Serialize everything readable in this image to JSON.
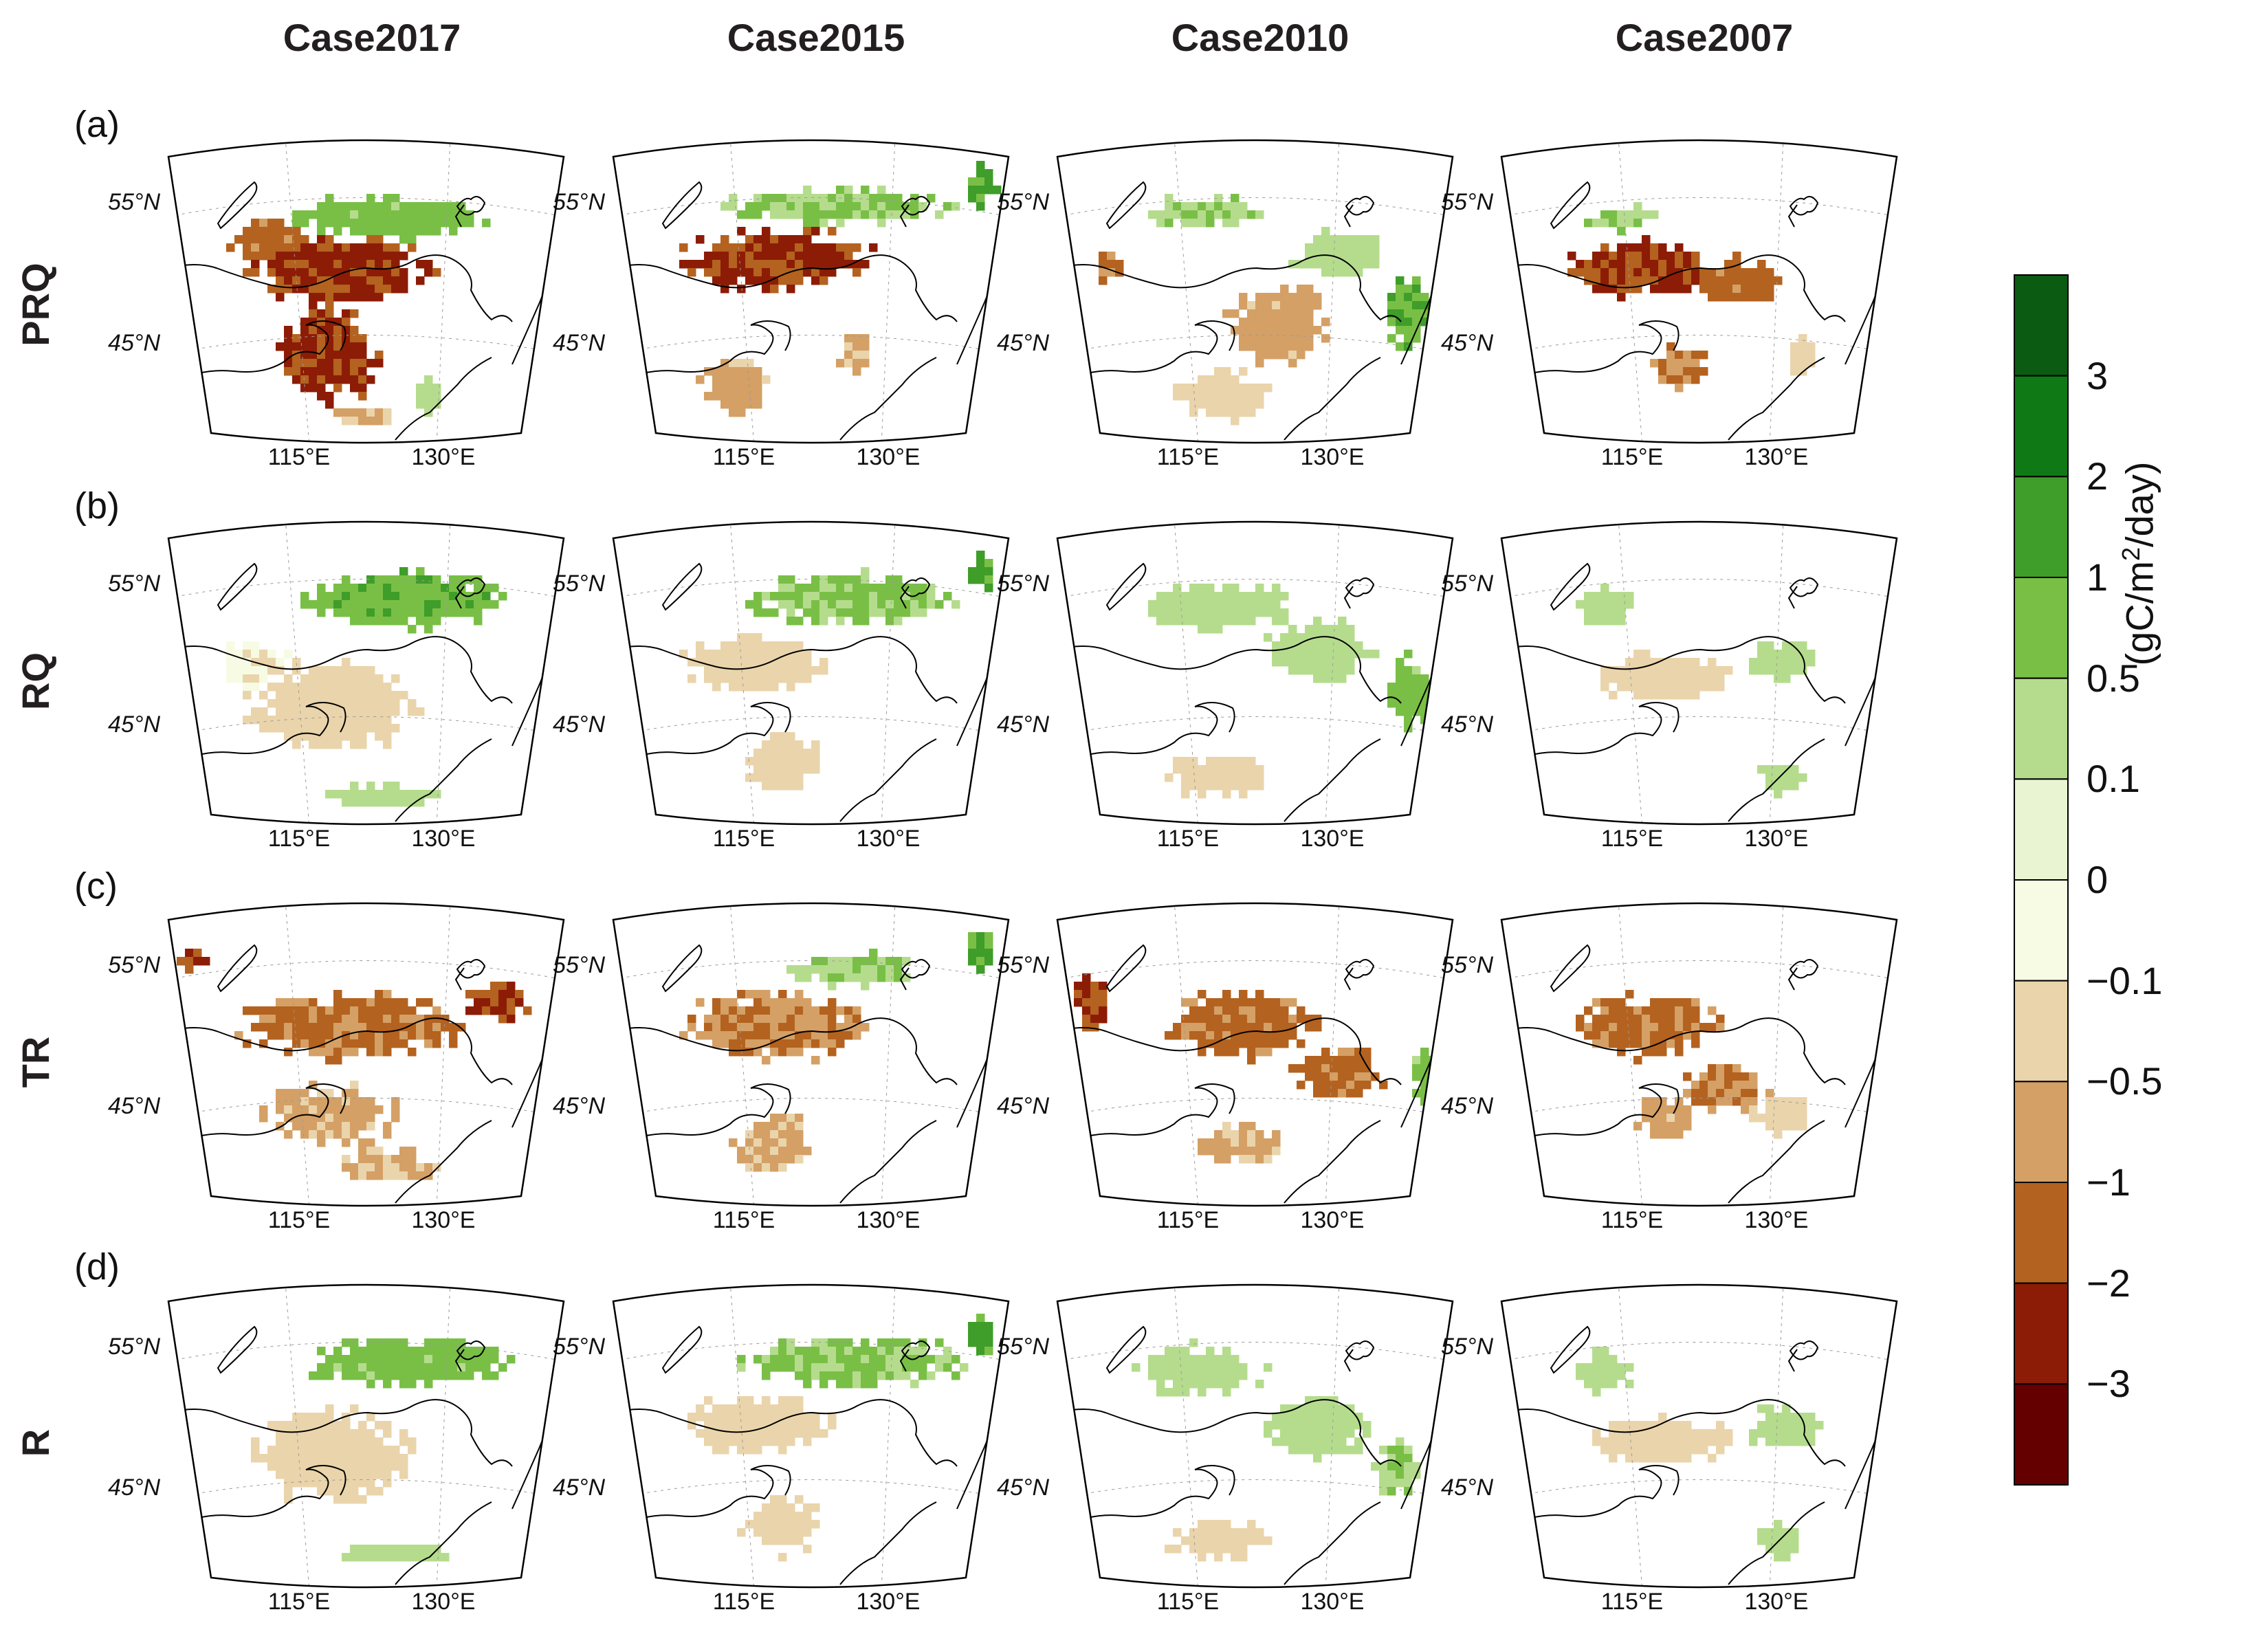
{
  "columns": [
    "Case2017",
    "Case2015",
    "Case2010",
    "Case2007"
  ],
  "rows": [
    {
      "panel": "(a)",
      "variable": "PRQ"
    },
    {
      "panel": "(b)",
      "variable": "RQ"
    },
    {
      "panel": "(c)",
      "variable": "TR"
    },
    {
      "panel": "(d)",
      "variable": "R"
    }
  ],
  "map": {
    "lat_labels": [
      "55°N",
      "45°N"
    ],
    "lon_labels": [
      "115°E",
      "130°E"
    ]
  },
  "colorbar": {
    "tick_labels": [
      "3",
      "2",
      "1",
      "0.5",
      "0.1",
      "0",
      "−0.1",
      "−0.5",
      "−1",
      "−2",
      "−3"
    ],
    "colors": [
      "#0b5b12",
      "#0f7a15",
      "#3f9d29",
      "#79bf46",
      "#b5dc8d",
      "#e9f5d2",
      "#f7fbe3",
      "#ead4ab",
      "#d4a065",
      "#b4621f",
      "#8c1c06",
      "#640000"
    ],
    "unit_prefix": "(gC/m",
    "unit_sup": "2",
    "unit_suffix": "/day)"
  },
  "chart_data": {
    "type": "map",
    "title": "",
    "columns": [
      "Case2017",
      "Case2015",
      "Case2010",
      "Case2007"
    ],
    "rows": [
      "PRQ",
      "RQ",
      "TR",
      "R"
    ],
    "unit": "gC/m2/day",
    "color_levels": [
      -3,
      -2,
      -1,
      -0.5,
      -0.1,
      0,
      0.1,
      0.5,
      1,
      2,
      3
    ],
    "lat_ticks": [
      45,
      55
    ],
    "lon_ticks": [
      115,
      130
    ],
    "region_extent": {
      "lon": [
        105,
        140
      ],
      "lat": [
        38,
        60
      ]
    },
    "anomaly_blobs": [
      {
        "row": "PRQ",
        "col": "Case2017",
        "blobs": [
          [
            0.42,
            0.4,
            0.3,
            0.18,
            -2.5
          ],
          [
            0.4,
            0.7,
            0.18,
            0.22,
            -2.5
          ],
          [
            0.25,
            0.3,
            0.14,
            0.1,
            -1.5
          ],
          [
            0.55,
            0.22,
            0.35,
            0.1,
            0.8
          ],
          [
            0.48,
            0.93,
            0.12,
            0.05,
            -0.7
          ],
          [
            0.65,
            0.85,
            0.05,
            0.1,
            0.4
          ]
        ]
      },
      {
        "row": "PRQ",
        "col": "Case2015",
        "blobs": [
          [
            0.4,
            0.37,
            0.32,
            0.15,
            -2.5
          ],
          [
            0.3,
            0.82,
            0.12,
            0.14,
            -0.8
          ],
          [
            0.55,
            0.18,
            0.4,
            0.08,
            0.6
          ],
          [
            0.92,
            0.1,
            0.05,
            0.1,
            1.5
          ],
          [
            0.6,
            0.7,
            0.06,
            0.12,
            -0.6
          ]
        ]
      },
      {
        "row": "PRQ",
        "col": "Case2010",
        "blobs": [
          [
            0.55,
            0.6,
            0.18,
            0.2,
            -0.8
          ],
          [
            0.4,
            0.85,
            0.15,
            0.12,
            -0.4
          ],
          [
            0.35,
            0.2,
            0.22,
            0.08,
            0.5
          ],
          [
            0.7,
            0.35,
            0.15,
            0.12,
            0.4
          ],
          [
            0.88,
            0.55,
            0.08,
            0.18,
            1.0
          ],
          [
            0.12,
            0.4,
            0.05,
            0.08,
            -1.2
          ]
        ]
      },
      {
        "row": "PRQ",
        "col": "Case2007",
        "blobs": [
          [
            0.35,
            0.4,
            0.25,
            0.13,
            -2.2
          ],
          [
            0.58,
            0.45,
            0.15,
            0.12,
            -1.5
          ],
          [
            0.45,
            0.75,
            0.1,
            0.12,
            -1.2
          ],
          [
            0.3,
            0.22,
            0.12,
            0.06,
            0.5
          ],
          [
            0.75,
            0.72,
            0.05,
            0.1,
            -0.4
          ]
        ]
      },
      {
        "row": "RQ",
        "col": "Case2017",
        "blobs": [
          [
            0.6,
            0.22,
            0.35,
            0.14,
            0.9
          ],
          [
            0.4,
            0.6,
            0.28,
            0.22,
            -0.3
          ],
          [
            0.2,
            0.45,
            0.12,
            0.12,
            -0.1
          ],
          [
            0.55,
            0.92,
            0.2,
            0.06,
            0.3
          ]
        ]
      },
      {
        "row": "RQ",
        "col": "Case2015",
        "blobs": [
          [
            0.6,
            0.22,
            0.38,
            0.12,
            0.6
          ],
          [
            0.35,
            0.45,
            0.25,
            0.14,
            -0.3
          ],
          [
            0.42,
            0.8,
            0.14,
            0.14,
            -0.2
          ],
          [
            0.92,
            0.12,
            0.05,
            0.1,
            1.3
          ]
        ]
      },
      {
        "row": "RQ",
        "col": "Case2010",
        "blobs": [
          [
            0.4,
            0.25,
            0.28,
            0.12,
            0.4
          ],
          [
            0.65,
            0.4,
            0.18,
            0.15,
            0.4
          ],
          [
            0.88,
            0.55,
            0.08,
            0.18,
            0.8
          ],
          [
            0.4,
            0.85,
            0.18,
            0.1,
            -0.2
          ]
        ]
      },
      {
        "row": "RQ",
        "col": "Case2007",
        "blobs": [
          [
            0.25,
            0.25,
            0.1,
            0.1,
            0.4
          ],
          [
            0.4,
            0.5,
            0.25,
            0.12,
            -0.3
          ],
          [
            0.7,
            0.45,
            0.12,
            0.1,
            0.2
          ],
          [
            0.7,
            0.85,
            0.08,
            0.08,
            0.3
          ]
        ]
      },
      {
        "row": "TR",
        "col": "Case2017",
        "blobs": [
          [
            0.45,
            0.38,
            0.38,
            0.16,
            -1.3
          ],
          [
            0.82,
            0.3,
            0.1,
            0.1,
            -2.2
          ],
          [
            0.4,
            0.7,
            0.22,
            0.15,
            -0.7
          ],
          [
            0.55,
            0.88,
            0.18,
            0.08,
            -0.6
          ],
          [
            0.05,
            0.15,
            0.06,
            0.05,
            -2.2
          ]
        ]
      },
      {
        "row": "TR",
        "col": "Case2015",
        "blobs": [
          [
            0.4,
            0.38,
            0.32,
            0.16,
            -1.1
          ],
          [
            0.6,
            0.18,
            0.25,
            0.08,
            0.5
          ],
          [
            0.4,
            0.8,
            0.14,
            0.14,
            -0.6
          ],
          [
            0.92,
            0.12,
            0.05,
            0.1,
            1.2
          ]
        ]
      },
      {
        "row": "TR",
        "col": "Case2010",
        "blobs": [
          [
            0.45,
            0.38,
            0.25,
            0.18,
            -1.4
          ],
          [
            0.08,
            0.3,
            0.06,
            0.15,
            -2.3
          ],
          [
            0.7,
            0.55,
            0.15,
            0.14,
            -1.2
          ],
          [
            0.45,
            0.8,
            0.15,
            0.1,
            -0.6
          ],
          [
            0.92,
            0.55,
            0.05,
            0.15,
            0.8
          ]
        ]
      },
      {
        "row": "TR",
        "col": "Case2007",
        "blobs": [
          [
            0.35,
            0.38,
            0.25,
            0.15,
            -1.3
          ],
          [
            0.55,
            0.6,
            0.15,
            0.12,
            -1.1
          ],
          [
            0.4,
            0.7,
            0.1,
            0.1,
            -0.8
          ],
          [
            0.7,
            0.7,
            0.1,
            0.1,
            -0.3
          ]
        ]
      },
      {
        "row": "R",
        "col": "Case2017",
        "blobs": [
          [
            0.6,
            0.22,
            0.35,
            0.12,
            0.8
          ],
          [
            0.4,
            0.55,
            0.28,
            0.22,
            -0.3
          ],
          [
            0.55,
            0.9,
            0.18,
            0.06,
            0.4
          ]
        ]
      },
      {
        "row": "R",
        "col": "Case2015",
        "blobs": [
          [
            0.6,
            0.22,
            0.38,
            0.12,
            0.6
          ],
          [
            0.35,
            0.45,
            0.25,
            0.14,
            -0.3
          ],
          [
            0.42,
            0.8,
            0.14,
            0.14,
            -0.2
          ],
          [
            0.92,
            0.12,
            0.05,
            0.1,
            1.3
          ]
        ]
      },
      {
        "row": "R",
        "col": "Case2010",
        "blobs": [
          [
            0.35,
            0.25,
            0.22,
            0.12,
            0.3
          ],
          [
            0.65,
            0.45,
            0.18,
            0.15,
            0.4
          ],
          [
            0.85,
            0.6,
            0.08,
            0.14,
            0.5
          ],
          [
            0.4,
            0.85,
            0.18,
            0.1,
            -0.2
          ]
        ]
      },
      {
        "row": "R",
        "col": "Case2007",
        "blobs": [
          [
            0.25,
            0.25,
            0.1,
            0.1,
            0.4
          ],
          [
            0.4,
            0.5,
            0.25,
            0.12,
            -0.3
          ],
          [
            0.7,
            0.45,
            0.12,
            0.1,
            0.3
          ],
          [
            0.7,
            0.85,
            0.08,
            0.08,
            0.3
          ]
        ]
      }
    ]
  }
}
